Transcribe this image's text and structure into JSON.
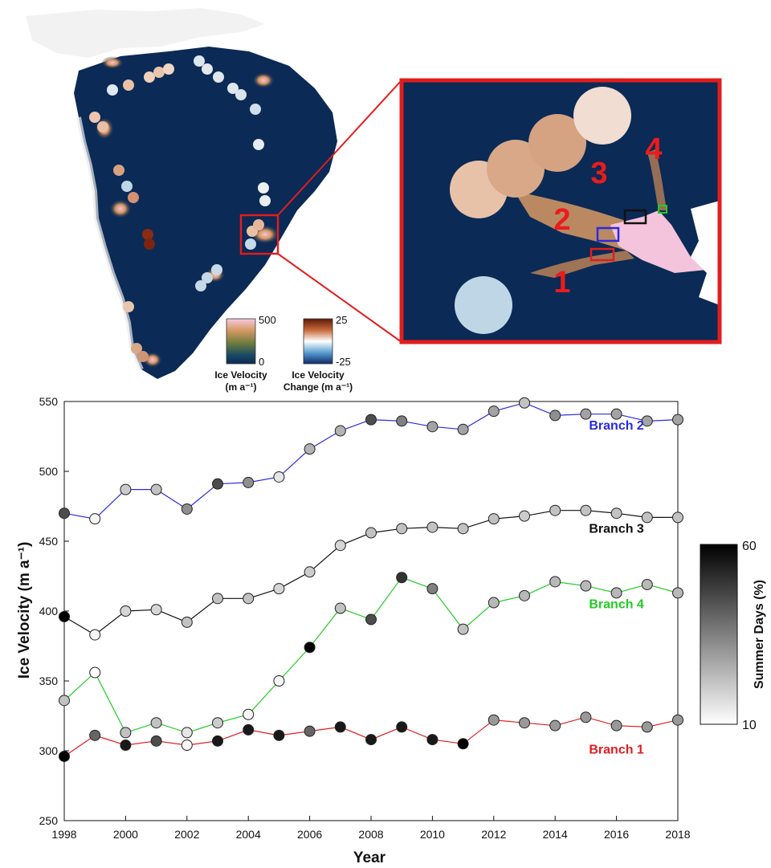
{
  "top_panel": {
    "velocity_scale": {
      "title_line1": "Ice Velocity",
      "title_line2": "(m a⁻¹)",
      "max_label": "500",
      "min_label": "0"
    },
    "change_scale": {
      "title_line1": "Ice Velocity",
      "title_line2": "Change (m a⁻¹)",
      "max_label": "25",
      "min_label": "-25"
    },
    "inset_branch_labels": [
      "1",
      "2",
      "3",
      "4"
    ],
    "colors": {
      "frame_red": "#e21d1d",
      "ice_dark": "#0b2a56",
      "fast_ice_pink": "#f4c3dc",
      "label_red": "#ea1c1c"
    }
  },
  "colorbar": {
    "label": "Summer Days (%)",
    "max_label": "60",
    "min_label": "10",
    "range": [
      10,
      60
    ]
  },
  "chart_data": {
    "type": "line",
    "x": [
      1998,
      1999,
      2000,
      2001,
      2002,
      2003,
      2004,
      2005,
      2006,
      2007,
      2008,
      2009,
      2010,
      2011,
      2012,
      2013,
      2014,
      2015,
      2016,
      2017,
      2018
    ],
    "xlabel": "Year",
    "ylabel": "Ice Velocity (m a⁻¹)",
    "xlim": [
      1998,
      2018
    ],
    "ylim": [
      250,
      550
    ],
    "xticks": [
      1998,
      2000,
      2002,
      2004,
      2006,
      2008,
      2010,
      2012,
      2014,
      2016,
      2018
    ],
    "yticks": [
      250,
      300,
      350,
      400,
      450,
      500,
      550
    ],
    "grid": false,
    "marker_shading": "summer days (%)",
    "series": [
      {
        "name": "Branch 2",
        "color": "#2b2bdc",
        "values": [
          470,
          466,
          487,
          487,
          473,
          491,
          492,
          496,
          516,
          529,
          537,
          536,
          532,
          530,
          543,
          549,
          540,
          541,
          541,
          536,
          537
        ],
        "summer_days": [
          45,
          12,
          20,
          22,
          32,
          45,
          32,
          15,
          25,
          25,
          45,
          35,
          28,
          28,
          28,
          22,
          32,
          28,
          28,
          28,
          28
        ]
      },
      {
        "name": "Branch 3",
        "color": "#111111",
        "values": [
          396,
          383,
          400,
          401,
          392,
          409,
          409,
          416,
          428,
          447,
          456,
          459,
          460,
          459,
          466,
          468,
          472,
          472,
          470,
          467,
          467
        ],
        "summer_days": [
          60,
          12,
          18,
          18,
          22,
          22,
          22,
          18,
          20,
          18,
          22,
          22,
          22,
          22,
          22,
          20,
          22,
          22,
          22,
          22,
          22
        ]
      },
      {
        "name": "Branch 4",
        "color": "#22cc22",
        "values": [
          336,
          356,
          313,
          320,
          313,
          320,
          326,
          350,
          374,
          402,
          394,
          424,
          416,
          387,
          406,
          411,
          421,
          418,
          413,
          419,
          413
        ],
        "summer_days": [
          22,
          10,
          22,
          22,
          15,
          20,
          12,
          12,
          60,
          22,
          45,
          50,
          35,
          22,
          24,
          24,
          24,
          24,
          24,
          24,
          24
        ]
      },
      {
        "name": "Branch 1",
        "color": "#e21d1d",
        "values": [
          296,
          311,
          304,
          307,
          304,
          307,
          315,
          311,
          314,
          317,
          308,
          317,
          308,
          305,
          322,
          320,
          318,
          324,
          318,
          317,
          322
        ],
        "summer_days": [
          60,
          40,
          55,
          45,
          12,
          55,
          55,
          55,
          40,
          55,
          55,
          55,
          55,
          60,
          30,
          30,
          30,
          30,
          30,
          30,
          30
        ]
      }
    ],
    "series_labels": [
      {
        "text": "Branch 2",
        "series": "Branch 2",
        "x": 2016,
        "y": 530
      },
      {
        "text": "Branch 3",
        "series": "Branch 3",
        "x": 2016,
        "y": 456
      },
      {
        "text": "Branch 4",
        "series": "Branch 4",
        "x": 2016,
        "y": 402
      },
      {
        "text": "Branch 1",
        "series": "Branch 1",
        "x": 2016,
        "y": 298
      }
    ]
  }
}
